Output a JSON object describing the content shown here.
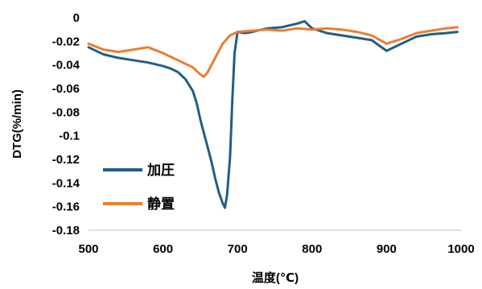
{
  "chart_data": {
    "type": "line",
    "title": "",
    "xlabel": "温度(℃)",
    "ylabel": "DTG(%/min)",
    "xlim": [
      500,
      1000
    ],
    "ylim": [
      -0.18,
      0
    ],
    "x_ticks": [
      "500",
      "600",
      "700",
      "800",
      "900",
      "1000"
    ],
    "y_ticks": [
      "0",
      "-0.02",
      "-0.04",
      "-0.06",
      "-0.08",
      "-0.1",
      "-0.12",
      "-0.14",
      "-0.16",
      "-0.18"
    ],
    "grid": false,
    "legend_position": "bottom-left",
    "series": [
      {
        "name": "加圧",
        "color": "#1f5f85",
        "x": [
          500,
          520,
          540,
          560,
          580,
          600,
          610,
          620,
          630,
          640,
          645,
          650,
          655,
          660,
          665,
          670,
          675,
          680,
          683,
          686,
          690,
          693,
          696,
          700,
          710,
          720,
          740,
          760,
          780,
          790,
          800,
          820,
          840,
          860,
          880,
          900,
          920,
          940,
          960,
          980,
          995
        ],
        "y": [
          -0.025,
          -0.031,
          -0.034,
          -0.036,
          -0.038,
          -0.041,
          -0.043,
          -0.046,
          -0.052,
          -0.062,
          -0.072,
          -0.086,
          -0.098,
          -0.11,
          -0.122,
          -0.136,
          -0.148,
          -0.157,
          -0.161,
          -0.15,
          -0.118,
          -0.07,
          -0.03,
          -0.012,
          -0.013,
          -0.012,
          -0.009,
          -0.008,
          -0.005,
          -0.003,
          -0.009,
          -0.013,
          -0.015,
          -0.017,
          -0.019,
          -0.028,
          -0.022,
          -0.016,
          -0.014,
          -0.013,
          -0.012
        ]
      },
      {
        "name": "静置",
        "color": "#ed7d31",
        "x": [
          500,
          520,
          540,
          560,
          580,
          600,
          620,
          640,
          650,
          655,
          660,
          670,
          680,
          690,
          700,
          720,
          740,
          760,
          780,
          800,
          820,
          840,
          860,
          880,
          900,
          920,
          940,
          960,
          980,
          995
        ],
        "y": [
          -0.022,
          -0.027,
          -0.029,
          -0.027,
          -0.025,
          -0.03,
          -0.036,
          -0.042,
          -0.048,
          -0.05,
          -0.046,
          -0.034,
          -0.022,
          -0.015,
          -0.012,
          -0.011,
          -0.01,
          -0.011,
          -0.009,
          -0.01,
          -0.009,
          -0.01,
          -0.012,
          -0.015,
          -0.022,
          -0.018,
          -0.013,
          -0.011,
          -0.009,
          -0.008
        ]
      }
    ]
  }
}
